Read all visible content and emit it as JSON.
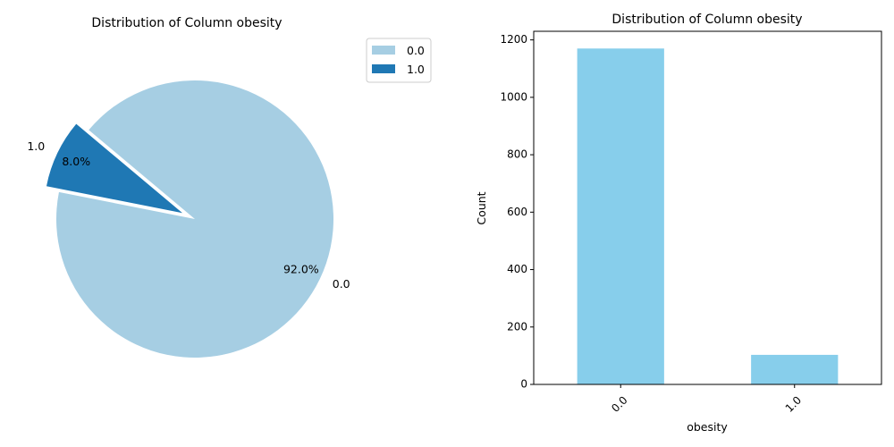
{
  "chart_data": [
    {
      "type": "pie",
      "title": "Distribution of Column obesity",
      "categories": [
        "0.0",
        "1.0"
      ],
      "values": [
        92.0,
        8.0
      ],
      "pct_labels": [
        "92.0%",
        "8.0%"
      ],
      "colors": [
        "#a6cee3",
        "#1f78b4"
      ],
      "exploded": [
        "1.0"
      ],
      "legend": {
        "placement": "top-right-outside",
        "entries": [
          "0.0",
          "1.0"
        ]
      }
    },
    {
      "type": "bar",
      "title": "Distribution of Column obesity",
      "categories": [
        "0.0",
        "1.0"
      ],
      "values": [
        1170,
        103
      ],
      "xlabel": "obesity",
      "ylabel": "Count",
      "ylim": [
        0,
        1230
      ],
      "yticks": [
        0,
        200,
        400,
        600,
        800,
        1000,
        1200
      ],
      "color": "#87ceeb",
      "grid": false
    }
  ]
}
